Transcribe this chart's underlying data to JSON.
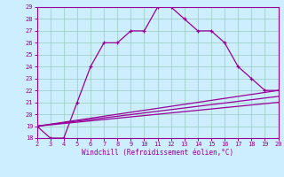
{
  "xlabel": "Windchill (Refroidissement éolien,°C)",
  "bg_color": "#cceeff",
  "line_color": "#990099",
  "grid_color": "#99ccbb",
  "xlim": [
    2,
    20
  ],
  "ylim": [
    18,
    29
  ],
  "xticks": [
    2,
    3,
    4,
    5,
    6,
    7,
    8,
    9,
    10,
    11,
    12,
    13,
    14,
    15,
    16,
    17,
    18,
    19,
    20
  ],
  "yticks": [
    18,
    19,
    20,
    21,
    22,
    23,
    24,
    25,
    26,
    27,
    28,
    29
  ],
  "main_x": [
    2,
    3,
    4,
    5,
    6,
    7,
    8,
    9,
    10,
    11,
    12,
    13,
    14,
    15,
    16,
    17,
    18,
    19,
    20
  ],
  "main_y": [
    19,
    18,
    18,
    21,
    24,
    26,
    26,
    27,
    27,
    29,
    29,
    28,
    27,
    27,
    26,
    24,
    23,
    22,
    22
  ],
  "line2_x": [
    2,
    20
  ],
  "line2_y": [
    19.0,
    21.0
  ],
  "line3_x": [
    2,
    20
  ],
  "line3_y": [
    19.0,
    21.5
  ],
  "line4_x": [
    2,
    20
  ],
  "line4_y": [
    19.0,
    22.0
  ]
}
